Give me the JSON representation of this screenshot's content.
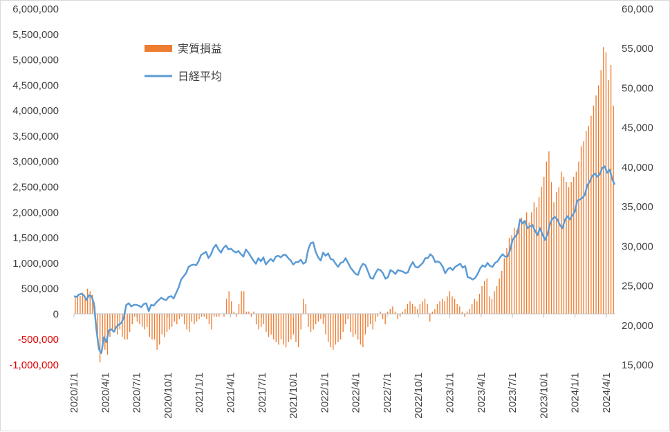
{
  "chart_data": {
    "type": "bar+line",
    "legend": {
      "placement": "top-left-inside",
      "entries": [
        {
          "name": "実質損益",
          "type": "bar",
          "color": "#ED7D31"
        },
        {
          "name": "日経平均",
          "type": "line",
          "color": "#5B9BD5"
        }
      ]
    },
    "y_left": {
      "min": -1000000,
      "max": 6000000,
      "step": 500000,
      "tick_labels": [
        "-1,000,000",
        "-500,000",
        "0",
        "500,000",
        "1,000,000",
        "1,500,000",
        "2,000,000",
        "2,500,000",
        "3,000,000",
        "3,500,000",
        "4,000,000",
        "4,500,000",
        "5,000,000",
        "5,500,000",
        "6,000,000"
      ],
      "negative_color": "#E00000"
    },
    "y_right": {
      "min": 15000,
      "max": 60000,
      "step": 5000,
      "tick_labels": [
        "15,000",
        "20,000",
        "25,000",
        "30,000",
        "35,000",
        "40,000",
        "45,000",
        "50,000",
        "55,000",
        "60,000"
      ]
    },
    "x_labels": [
      "2020/1/1",
      "2020/4/1",
      "2020/7/1",
      "2020/10/1",
      "2021/1/1",
      "2021/4/1",
      "2021/7/1",
      "2021/10/1",
      "2022/1/1",
      "2022/4/1",
      "2022/7/1",
      "2022/10/1",
      "2023/1/1",
      "2023/4/1",
      "2023/7/1",
      "2023/10/1",
      "2024/1/1",
      "2024/4/1"
    ],
    "series": [
      {
        "name": "実質損益",
        "axis": "left",
        "comment": "weekly values from 2020/1/1, one per week",
        "values": [
          350000,
          380000,
          360000,
          420000,
          330000,
          500000,
          450000,
          380000,
          150000,
          -400000,
          -950000,
          -600000,
          -700000,
          -800000,
          -450000,
          -300000,
          -350000,
          -400000,
          -300000,
          -450000,
          -500000,
          -500000,
          -350000,
          -200000,
          -50000,
          -150000,
          -200000,
          -250000,
          -300000,
          -250000,
          -450000,
          -500000,
          -500000,
          -700000,
          -600000,
          -400000,
          -450000,
          -350000,
          -300000,
          -250000,
          -150000,
          -200000,
          -100000,
          -50000,
          -200000,
          -300000,
          -350000,
          -150000,
          -200000,
          -150000,
          -100000,
          -50000,
          -50000,
          -100000,
          -200000,
          -300000,
          -50000,
          -50000,
          -50000,
          0,
          -50000,
          300000,
          450000,
          250000,
          50000,
          -50000,
          200000,
          450000,
          450000,
          50000,
          50000,
          -50000,
          50000,
          -200000,
          -300000,
          -250000,
          -200000,
          -350000,
          -450000,
          -400000,
          -500000,
          -550000,
          -600000,
          -500000,
          -600000,
          -650000,
          -550000,
          -500000,
          -400000,
          -550000,
          -650000,
          -300000,
          300000,
          200000,
          -250000,
          -350000,
          -300000,
          -200000,
          -150000,
          -100000,
          -200000,
          -400000,
          -550000,
          -650000,
          -700000,
          -600000,
          -550000,
          -500000,
          -350000,
          -200000,
          -100000,
          -350000,
          -450000,
          -400000,
          -500000,
          -600000,
          -650000,
          -400000,
          -250000,
          -200000,
          -300000,
          -150000,
          -50000,
          50000,
          -100000,
          -200000,
          50000,
          100000,
          150000,
          50000,
          -100000,
          -50000,
          50000,
          100000,
          200000,
          250000,
          200000,
          150000,
          100000,
          200000,
          250000,
          300000,
          200000,
          -150000,
          50000,
          100000,
          200000,
          250000,
          300000,
          250000,
          350000,
          450000,
          350000,
          300000,
          200000,
          150000,
          50000,
          -50000,
          50000,
          100000,
          200000,
          300000,
          250000,
          400000,
          550000,
          650000,
          700000,
          350000,
          300000,
          450000,
          550000,
          700000,
          850000,
          1100000,
          1300000,
          1500000,
          1550000,
          1700000,
          1650000,
          1800000,
          1900000,
          1850000,
          2000000,
          1800000,
          2000000,
          2200000,
          2100000,
          2300000,
          2500000,
          2700000,
          3000000,
          3200000,
          2600000,
          2200000,
          2400000,
          2500000,
          2800000,
          2700000,
          2600000,
          2500000,
          2600000,
          2700000,
          2800000,
          3000000,
          3300000,
          3400000,
          3600000,
          3700000,
          3900000,
          4100000,
          4300000,
          4500000,
          4800000,
          5250000,
          5150000,
          4600000,
          4900000,
          4100000
        ]
      },
      {
        "name": "日経平均",
        "axis": "right",
        "values": [
          23700,
          23600,
          23900,
          24000,
          23800,
          23200,
          23800,
          23700,
          22800,
          19500,
          17000,
          16500,
          18500,
          17900,
          19400,
          19500,
          19200,
          19800,
          20100,
          20300,
          21000,
          22600,
          22800,
          22400,
          22600,
          22600,
          22500,
          22300,
          22700,
          22800,
          21800,
          22600,
          22500,
          22900,
          23200,
          23500,
          23300,
          23200,
          23600,
          23700,
          23400,
          24100,
          24800,
          25800,
          26200,
          26600,
          27400,
          27600,
          27700,
          27600,
          28100,
          28900,
          29100,
          29300,
          28500,
          29000,
          29800,
          30200,
          29600,
          29200,
          29800,
          30100,
          29600,
          29700,
          29400,
          29200,
          29400,
          29000,
          28700,
          29600,
          29200,
          28700,
          28200,
          27800,
          28500,
          28100,
          28600,
          27700,
          28100,
          28400,
          28100,
          28700,
          28800,
          28600,
          28900,
          28900,
          28500,
          28200,
          27700,
          28000,
          28000,
          28300,
          27800,
          28000,
          29600,
          30400,
          30500,
          29300,
          28600,
          28200,
          29200,
          28800,
          29100,
          28400,
          28300,
          27800,
          27400,
          27900,
          28000,
          28500,
          27900,
          27300,
          26900,
          26500,
          26400,
          27300,
          27800,
          27600,
          26800,
          26000,
          25900,
          26600,
          27100,
          27000,
          26600,
          25900,
          26100,
          27000,
          26800,
          26500,
          27000,
          26900,
          26800,
          26600,
          26700,
          27500,
          28000,
          27400,
          27300,
          27600,
          27900,
          28500,
          28500,
          29000,
          28700,
          28000,
          28100,
          27900,
          27400,
          26600,
          27100,
          27300,
          27000,
          27400,
          27600,
          27800,
          27300,
          27500,
          26100,
          26000,
          25800,
          26000,
          26500,
          27200,
          27600,
          27400,
          27900,
          27500,
          27400,
          27900,
          28100,
          28600,
          29000,
          28700,
          28700,
          29500,
          30800,
          31200,
          31600,
          33400,
          32900,
          33200,
          32300,
          32500,
          32700,
          32000,
          31400,
          32300,
          31500,
          30800,
          31500,
          32800,
          33500,
          33700,
          33400,
          32700,
          32300,
          33300,
          33800,
          33400,
          33900,
          34400,
          35800,
          35900,
          36100,
          36500,
          37700,
          38200,
          38900,
          39200,
          38800,
          39100,
          39900,
          40100,
          39300,
          39700,
          38500,
          37800
        ]
      }
    ]
  }
}
